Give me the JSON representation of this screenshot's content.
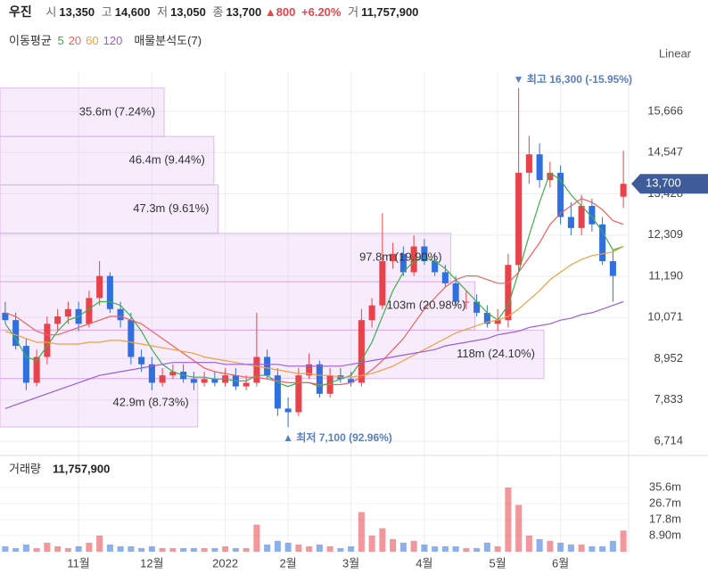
{
  "header": {
    "name": "우진",
    "open_label": "시",
    "open": "13,350",
    "high_label": "고",
    "high": "14,600",
    "low_label": "저",
    "low": "13,050",
    "close_label": "종",
    "close": "13,700",
    "change": "▲800",
    "change_pct": "+6.20%",
    "volume_label": "거",
    "volume": "11,757,900"
  },
  "ma_label": "이동평균",
  "profile_label": "매물분석도(7)",
  "scale_label": "Linear",
  "chart_data": [
    {
      "type": "candlestick",
      "categories": [
        null,
        null,
        null,
        null,
        null,
        null,
        null,
        "11월",
        null,
        null,
        null,
        null,
        null,
        null,
        "12월",
        null,
        null,
        null,
        null,
        null,
        null,
        "2022",
        null,
        null,
        null,
        null,
        null,
        "2월",
        null,
        null,
        null,
        null,
        null,
        "3월",
        null,
        null,
        null,
        null,
        null,
        null,
        "4월",
        null,
        null,
        null,
        null,
        null,
        null,
        "5월",
        null,
        null,
        null,
        null,
        null,
        "6월",
        null,
        null,
        null,
        null,
        null,
        null
      ],
      "open": [
        10200,
        10000,
        9300,
        8300,
        9000,
        9900,
        10100,
        10300,
        9900,
        10600,
        11200,
        10300,
        10000,
        9000,
        8800,
        8300,
        8500,
        8600,
        8400,
        8300,
        8400,
        8300,
        8500,
        8200,
        8300,
        9000,
        8500,
        7600,
        7500,
        8500,
        8800,
        8000,
        8500,
        8400,
        8300,
        10000,
        10400,
        11600,
        11800,
        11300,
        12000,
        11600,
        11300,
        11000,
        10500,
        10500,
        10200,
        9900,
        10000,
        11500,
        14000,
        14500,
        13800,
        14000,
        12800,
        12500,
        13100,
        12600,
        11600,
        13350
      ],
      "high": [
        10500,
        10200,
        9500,
        9200,
        10100,
        10300,
        10500,
        10500,
        10800,
        11600,
        11300,
        10500,
        10200,
        9200,
        9000,
        8700,
        8800,
        8800,
        8600,
        8600,
        8600,
        8700,
        8700,
        8500,
        10200,
        9200,
        8700,
        7900,
        8700,
        9100,
        8900,
        8700,
        8700,
        8600,
        10300,
        10600,
        12900,
        12100,
        12000,
        12300,
        12200,
        11800,
        11500,
        11200,
        10800,
        10700,
        10400,
        10300,
        11800,
        16300,
        15000,
        14800,
        14300,
        14200,
        13200,
        13400,
        13300,
        12800,
        11900,
        14600
      ],
      "low": [
        9900,
        9200,
        8100,
        8200,
        8800,
        9700,
        9900,
        9700,
        9800,
        10400,
        10200,
        9800,
        8800,
        8600,
        8100,
        8200,
        8400,
        8300,
        8100,
        8200,
        8200,
        8200,
        8100,
        8100,
        8200,
        8400,
        7400,
        7100,
        7400,
        8400,
        7900,
        7900,
        8300,
        8200,
        8200,
        9800,
        10300,
        11400,
        11200,
        11200,
        11500,
        11200,
        10900,
        10400,
        10300,
        10100,
        9800,
        9700,
        9800,
        11300,
        13700,
        13600,
        13600,
        12600,
        12300,
        12300,
        12400,
        11500,
        10500,
        13050
      ],
      "close": [
        10000,
        9300,
        8300,
        9000,
        9900,
        10100,
        10300,
        9900,
        10600,
        11200,
        10300,
        10000,
        9000,
        8800,
        8300,
        8500,
        8600,
        8400,
        8300,
        8400,
        8300,
        8500,
        8200,
        8300,
        9000,
        8500,
        7600,
        7500,
        8500,
        8800,
        8000,
        8500,
        8400,
        8300,
        10000,
        10400,
        11600,
        11800,
        11300,
        12000,
        11600,
        11300,
        11000,
        10500,
        10500,
        10200,
        9900,
        10000,
        11500,
        14000,
        14500,
        13800,
        14000,
        12800,
        12500,
        13100,
        12600,
        11600,
        11200,
        13700
      ],
      "up_color": "#e8434a",
      "down_color": "#2f6fde",
      "ylim": [
        6351,
        16464
      ],
      "yticks": [
        {
          "value": 6714,
          "label": "6,714"
        },
        {
          "value": 7833,
          "label": "7,833"
        },
        {
          "value": 8952,
          "label": "8,952"
        },
        {
          "value": 10071,
          "label": "10,071"
        },
        {
          "value": 11190,
          "label": "11,190"
        },
        {
          "value": 12309,
          "label": "12,309"
        },
        {
          "value": 13428,
          "label": "13,428"
        },
        {
          "value": 14547,
          "label": "14,547"
        },
        {
          "value": 15666,
          "label": "15,666"
        }
      ],
      "grid": true,
      "series": [
        {
          "name": "5",
          "color": "#3fae49",
          "values": [
            9900,
            9500,
            9000,
            8900,
            9300,
            9700,
            10000,
            10100,
            10300,
            10500,
            10500,
            10400,
            10100,
            9700,
            9200,
            8800,
            8600,
            8500,
            8450,
            8450,
            8400,
            8400,
            8350,
            8350,
            8500,
            8500,
            8300,
            8200,
            8300,
            8300,
            8200,
            8300,
            8400,
            8500,
            8900,
            9400,
            10100,
            10800,
            11300,
            11600,
            11700,
            11600,
            11400,
            11100,
            10800,
            10500,
            10200,
            10000,
            10400,
            11300,
            12300,
            13200,
            14000,
            13800,
            13400,
            13100,
            12800,
            12400,
            11900,
            12000
          ]
        },
        {
          "name": "20",
          "color": "#f06060",
          "values": [
            10200,
            10100,
            9900,
            9700,
            9600,
            9600,
            9700,
            9800,
            9900,
            10000,
            10100,
            10100,
            10000,
            9900,
            9700,
            9500,
            9300,
            9100,
            8900,
            8700,
            8600,
            8550,
            8500,
            8450,
            8450,
            8400,
            8350,
            8300,
            8300,
            8300,
            8250,
            8250,
            8250,
            8300,
            8450,
            8650,
            8900,
            9200,
            9500,
            9900,
            10300,
            10600,
            10900,
            11100,
            11200,
            11200,
            11100,
            11000,
            11000,
            11300,
            11700,
            12100,
            12600,
            12900,
            13100,
            13300,
            13200,
            13000,
            12700,
            12600
          ]
        },
        {
          "name": "60",
          "color": "#f0a040",
          "values": [
            9700,
            9600,
            9500,
            9400,
            9400,
            9350,
            9350,
            9350,
            9400,
            9400,
            9450,
            9450,
            9400,
            9350,
            9300,
            9250,
            9200,
            9150,
            9100,
            9000,
            8950,
            8900,
            8850,
            8800,
            8750,
            8700,
            8650,
            8600,
            8550,
            8550,
            8500,
            8500,
            8450,
            8450,
            8500,
            8550,
            8650,
            8750,
            8900,
            9050,
            9200,
            9350,
            9500,
            9650,
            9750,
            9850,
            9950,
            10000,
            10100,
            10300,
            10550,
            10800,
            11100,
            11300,
            11500,
            11650,
            11750,
            11800,
            11850,
            12000
          ]
        },
        {
          "name": "120",
          "color": "#9b5ddb",
          "values": [
            7600,
            7700,
            7800,
            7900,
            8000,
            8100,
            8200,
            8300,
            8400,
            8500,
            8550,
            8600,
            8650,
            8700,
            8750,
            8800,
            8850,
            8850,
            8850,
            8850,
            8850,
            8800,
            8800,
            8800,
            8800,
            8800,
            8800,
            8750,
            8750,
            8750,
            8750,
            8750,
            8750,
            8800,
            8850,
            8900,
            8950,
            9000,
            9050,
            9100,
            9150,
            9200,
            9300,
            9350,
            9400,
            9450,
            9500,
            9600,
            9650,
            9700,
            9800,
            9850,
            9900,
            10000,
            10050,
            10150,
            10200,
            10300,
            10400,
            10500
          ]
        }
      ],
      "profile": {
        "color": "#d9a8ee",
        "bins": [
          7100,
          8414,
          9729,
          11043,
          12357,
          13671,
          14986,
          16300
        ],
        "values": [
          42.9,
          118,
          103,
          97.8,
          47.3,
          46.4,
          35.6
        ],
        "value_labels": [
          "42.9m (8.73%)",
          "118m (24.10%)",
          "103m (20.98%)",
          "97.8m (19.90%)",
          "47.3m (9.61%)",
          "46.4m (9.44%)",
          "35.6m (7.24%)"
        ]
      },
      "high_label": "▼ 최고 16,300 (-15.95%)",
      "low_label": "▲ 최저 7,100 (92.96%)",
      "last_price_label": "13,700"
    },
    {
      "type": "bar",
      "title": "거래량",
      "title_value": "11,757,900",
      "values": [
        3,
        2,
        4,
        2,
        5,
        3,
        2,
        3,
        5,
        9,
        4,
        3,
        3,
        2,
        3,
        2,
        2,
        2,
        2,
        2,
        2,
        3,
        2,
        2,
        15,
        4,
        6,
        5,
        4,
        3,
        4,
        3,
        2,
        3,
        22,
        9,
        13,
        7,
        5,
        6,
        4,
        3,
        3,
        3,
        2,
        2,
        5,
        3,
        35.6,
        26,
        9,
        7,
        6,
        5,
        4,
        4,
        3,
        3,
        6,
        11.7579
      ],
      "ylim": [
        0,
        52.9
      ],
      "yticks": [
        {
          "value": 8.9,
          "label": "8.90m"
        },
        {
          "value": 17.8,
          "label": "17.8m"
        },
        {
          "value": 26.7,
          "label": "26.7m"
        },
        {
          "value": 35.6,
          "label": "35.6m"
        }
      ]
    }
  ]
}
